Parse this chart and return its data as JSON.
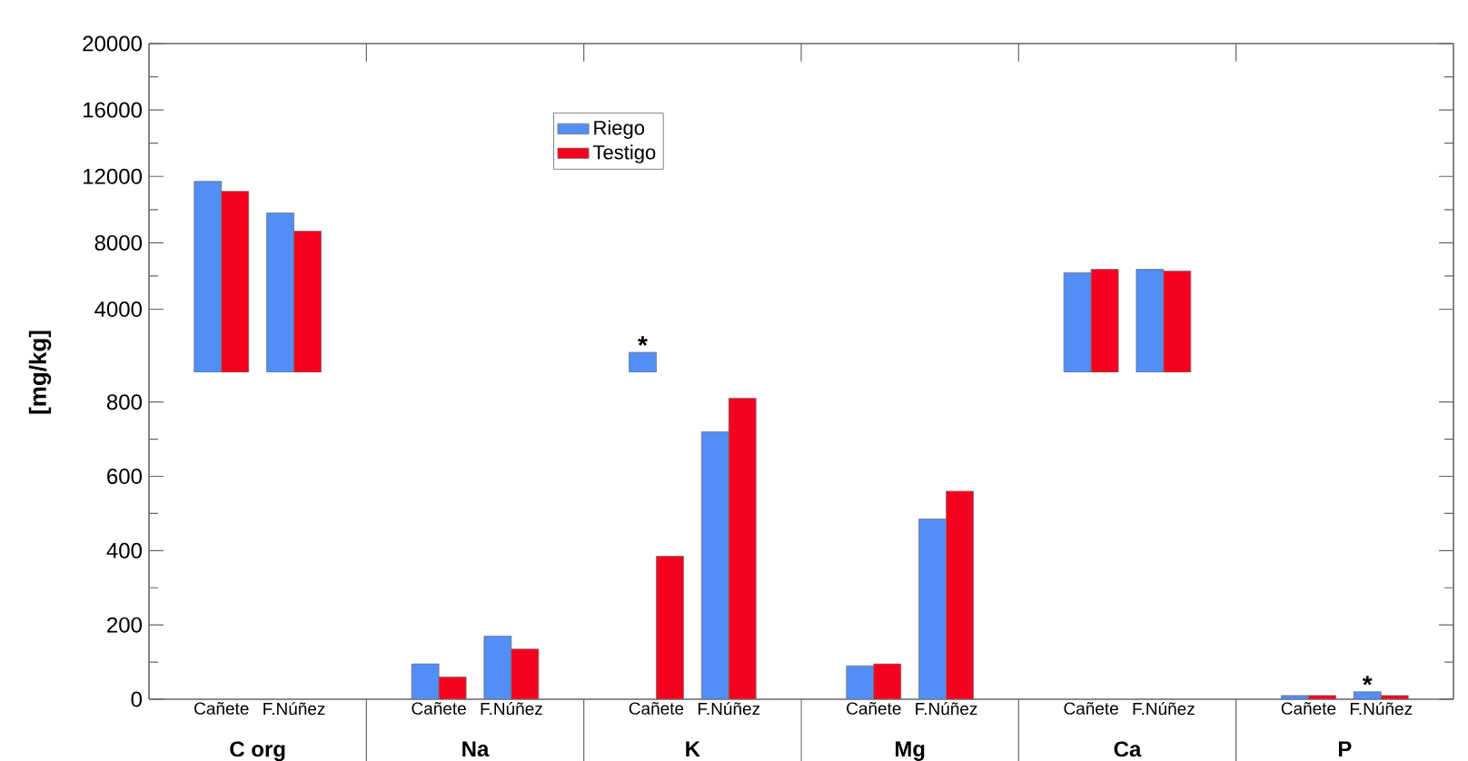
{
  "chart_data": [
    {
      "type": "bar",
      "categories": [
        null,
        null,
        null,
        null,
        null,
        null,
        null,
        null,
        null,
        null,
        null,
        null
      ],
      "series": [
        {
          "name": "Riego",
          "color": "#528ef5",
          "values": [
            11700,
            9800,
            null,
            null,
            1400,
            null,
            null,
            null,
            6200,
            6400,
            null,
            null
          ]
        },
        {
          "name": "Testigo",
          "color": "#f5001e",
          "values": [
            11100,
            8700,
            null,
            null,
            null,
            null,
            null,
            null,
            6400,
            6300,
            null,
            null
          ]
        }
      ],
      "ylim": [
        200,
        20000
      ],
      "yticks": [
        4000,
        8000,
        12000,
        16000,
        20000
      ],
      "legend": "top",
      "annotations": [
        "*"
      ]
    },
    {
      "type": "bar",
      "categories": [
        "Cañete",
        "F.Núñez",
        "Cañete",
        "F.Núñez",
        "Cañete",
        "F.Núñez",
        "Cañete",
        "F.Núñez",
        "Cañete",
        "F.Núñez",
        "Cañete",
        "F.Núñez"
      ],
      "series": [
        {
          "color": "#528ef5",
          "values": [
            null,
            null,
            95,
            170,
            null,
            720,
            90,
            485,
            null,
            null,
            10,
            20
          ]
        },
        {
          "color": "#f5001e",
          "values": [
            null,
            null,
            60,
            135,
            385,
            810,
            95,
            560,
            null,
            null,
            10,
            10
          ]
        }
      ],
      "ylim": [
        0,
        880
      ],
      "yticks": [
        0,
        200,
        400,
        600,
        800
      ],
      "ylabel": "[mg/kg]",
      "annotations": [
        "C org",
        "Na",
        "K",
        "Mg",
        "Ca",
        "P",
        "*"
      ]
    }
  ]
}
